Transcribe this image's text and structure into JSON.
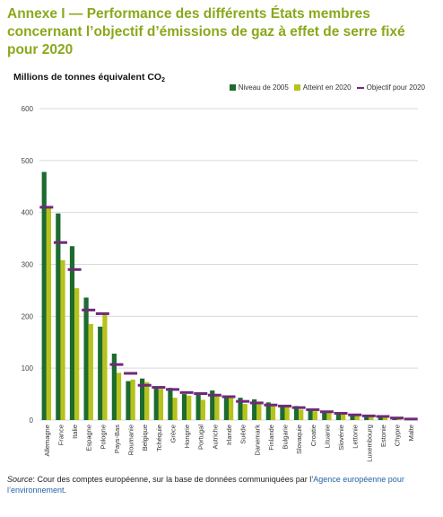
{
  "title": "Annexe I — Performance des différents États membres concernant l’objectif d’émissions de gaz à effet de serre fixé pour 2020",
  "unit_label": "Millions de tonnes équivalent CO",
  "unit_sub": "2",
  "legend": {
    "s1": "Niveau de 2005",
    "s2": "Atteint en 2020",
    "s3": "Objectif pour 2020"
  },
  "colors": {
    "title": "#8aa81b",
    "level2005": "#1d6b2f",
    "achieved2020": "#b7c21a",
    "target2020": "#6f2a7a",
    "grid": "#d9d9d9"
  },
  "source": {
    "label": "Source",
    "text": ": Cour des comptes européenne, sur la base de données communiquées par l’",
    "agency": "Agence européenne pour l’environnement",
    "end": "."
  },
  "chart_data": {
    "type": "bar",
    "ylim": [
      0,
      600
    ],
    "yticks": [
      0,
      100,
      200,
      300,
      400,
      500,
      600
    ],
    "grid": true,
    "legend_position": "top-right",
    "categories": [
      "Allemagne",
      "France",
      "Italie",
      "Espagne",
      "Pologne",
      "Pays-Bas",
      "Roumanie",
      "Belgique",
      "Tchéquie",
      "Grèce",
      "Hongrie",
      "Portugal",
      "Autriche",
      "Irlande",
      "Suède",
      "Danemark",
      "Finlande",
      "Bulgarie",
      "Slovaquie",
      "Croatie",
      "Lituanie",
      "Slovénie",
      "Lettonie",
      "Luxembourg",
      "Estonie",
      "Chypre",
      "Malte"
    ],
    "series": [
      {
        "name": "Niveau de 2005",
        "kind": "bar",
        "values": [
          478,
          398,
          335,
          236,
          180,
          128,
          75,
          80,
          63,
          62,
          50,
          50,
          57,
          47,
          43,
          40,
          34,
          28,
          27,
          20,
          14,
          12,
          9,
          10,
          7,
          4,
          1
        ]
      },
      {
        "name": "Atteint en 2020",
        "kind": "bar",
        "values": [
          408,
          308,
          254,
          185,
          205,
          91,
          78,
          73,
          60,
          43,
          47,
          39,
          48,
          43,
          31,
          32,
          29,
          25,
          20,
          17,
          14,
          11,
          8,
          8,
          6,
          4,
          1
        ]
      },
      {
        "name": "Objectif pour 2020",
        "kind": "marker",
        "values": [
          410,
          342,
          290,
          212,
          205,
          107,
          90,
          67,
          63,
          59,
          53,
          51,
          48,
          45,
          36,
          33,
          29,
          27,
          24,
          20,
          16,
          13,
          10,
          8,
          7,
          4,
          2
        ]
      }
    ]
  }
}
